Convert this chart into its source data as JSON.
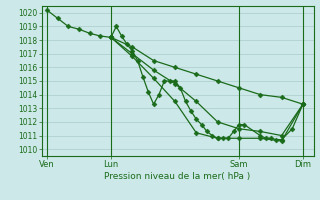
{
  "background_color": "#cce8e8",
  "grid_color": "#aacccc",
  "line_color": "#1a6b1a",
  "marker_color": "#1a6b1a",
  "xlabel": "Pression niveau de la mer( hPa )",
  "ylim": [
    1009.5,
    1020.5
  ],
  "yticks": [
    1010,
    1011,
    1012,
    1013,
    1014,
    1015,
    1016,
    1017,
    1018,
    1019,
    1020
  ],
  "xtick_labels": [
    "Ven",
    "Lun",
    "Sam",
    "Dim"
  ],
  "xtick_positions": [
    0,
    12,
    36,
    48
  ],
  "xlim": [
    -1,
    50
  ],
  "series1": [
    [
      0,
      1020.2
    ],
    [
      2,
      1019.6
    ],
    [
      4,
      1019.0
    ],
    [
      6,
      1018.8
    ],
    [
      8,
      1018.5
    ],
    [
      10,
      1018.3
    ],
    [
      12,
      1018.2
    ],
    [
      13,
      1019.0
    ],
    [
      14,
      1018.3
    ],
    [
      15,
      1017.7
    ],
    [
      16,
      1017.2
    ],
    [
      17,
      1016.5
    ],
    [
      18,
      1015.3
    ],
    [
      19,
      1014.2
    ],
    [
      20,
      1013.3
    ],
    [
      21,
      1014.0
    ],
    [
      22,
      1015.0
    ],
    [
      23,
      1015.0
    ],
    [
      24,
      1015.0
    ],
    [
      25,
      1014.5
    ],
    [
      26,
      1013.5
    ],
    [
      27,
      1012.8
    ],
    [
      28,
      1012.2
    ],
    [
      29,
      1011.8
    ],
    [
      30,
      1011.3
    ],
    [
      31,
      1011.0
    ],
    [
      32,
      1010.8
    ],
    [
      33,
      1010.8
    ],
    [
      34,
      1010.8
    ],
    [
      35,
      1011.3
    ],
    [
      36,
      1011.8
    ],
    [
      37,
      1011.8
    ],
    [
      40,
      1011.0
    ],
    [
      41,
      1010.8
    ],
    [
      42,
      1010.8
    ],
    [
      43,
      1010.7
    ],
    [
      44,
      1010.7
    ],
    [
      46,
      1011.5
    ],
    [
      48,
      1013.3
    ]
  ],
  "series2": [
    [
      12,
      1018.2
    ],
    [
      16,
      1017.5
    ],
    [
      20,
      1016.5
    ],
    [
      24,
      1016.0
    ],
    [
      28,
      1015.5
    ],
    [
      32,
      1015.0
    ],
    [
      36,
      1014.5
    ],
    [
      40,
      1014.0
    ],
    [
      44,
      1013.8
    ],
    [
      48,
      1013.3
    ]
  ],
  "series3": [
    [
      12,
      1018.2
    ],
    [
      16,
      1017.0
    ],
    [
      20,
      1015.8
    ],
    [
      24,
      1014.8
    ],
    [
      28,
      1013.5
    ],
    [
      32,
      1012.0
    ],
    [
      36,
      1011.5
    ],
    [
      40,
      1011.3
    ],
    [
      44,
      1011.0
    ],
    [
      48,
      1013.3
    ]
  ],
  "series4": [
    [
      12,
      1018.2
    ],
    [
      16,
      1016.8
    ],
    [
      20,
      1015.2
    ],
    [
      24,
      1013.5
    ],
    [
      28,
      1011.2
    ],
    [
      32,
      1010.8
    ],
    [
      36,
      1010.8
    ],
    [
      40,
      1010.8
    ],
    [
      44,
      1010.6
    ],
    [
      48,
      1013.3
    ]
  ]
}
